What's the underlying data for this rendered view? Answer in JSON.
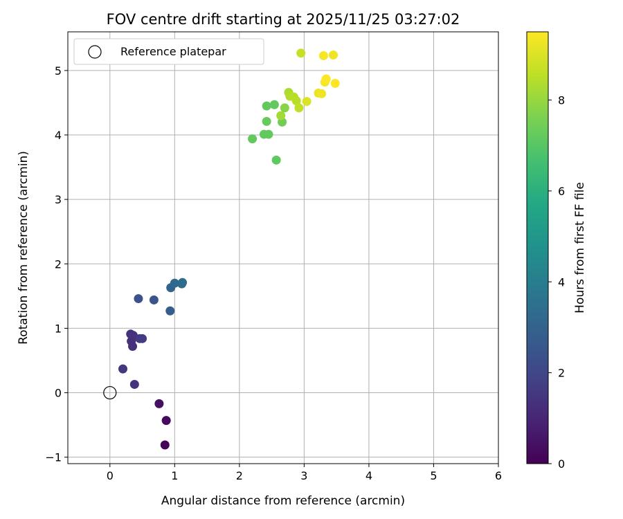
{
  "chart_data": {
    "type": "scatter",
    "title": "FOV centre drift starting at 2025/11/25 03:27:02",
    "xlabel": "Angular distance from reference (arcmin)",
    "ylabel": "Rotation from reference (arcmin)",
    "xlim": [
      -0.65,
      6.0
    ],
    "ylim": [
      -1.1,
      5.6
    ],
    "xticks": [
      0,
      1,
      2,
      3,
      4,
      5,
      6
    ],
    "yticks": [
      -1,
      0,
      1,
      2,
      3,
      4,
      5
    ],
    "grid": true,
    "legend": {
      "placement": "top-left",
      "label": "Reference platepar"
    },
    "reference_point": {
      "x": 0,
      "y": 0
    },
    "colorbar": {
      "label": "Hours from first FF file",
      "range": [
        0,
        9.5
      ],
      "ticks": [
        0,
        2,
        4,
        6,
        8
      ],
      "colormap": "viridis"
    },
    "points": [
      {
        "x": 0.85,
        "y": -0.81,
        "h": 0.1
      },
      {
        "x": 0.87,
        "y": -0.43,
        "h": 0.25
      },
      {
        "x": 0.76,
        "y": -0.17,
        "h": 0.4
      },
      {
        "x": 0.38,
        "y": 0.13,
        "h": 1.4
      },
      {
        "x": 0.2,
        "y": 0.37,
        "h": 1.5
      },
      {
        "x": 0.35,
        "y": 0.72,
        "h": 1.3
      },
      {
        "x": 0.33,
        "y": 0.8,
        "h": 1.3
      },
      {
        "x": 0.32,
        "y": 0.91,
        "h": 1.3
      },
      {
        "x": 0.36,
        "y": 0.89,
        "h": 1.4
      },
      {
        "x": 0.46,
        "y": 0.84,
        "h": 1.6
      },
      {
        "x": 0.5,
        "y": 0.84,
        "h": 1.7
      },
      {
        "x": 0.44,
        "y": 1.46,
        "h": 2.4
      },
      {
        "x": 0.68,
        "y": 1.44,
        "h": 2.5
      },
      {
        "x": 0.93,
        "y": 1.27,
        "h": 2.8
      },
      {
        "x": 0.94,
        "y": 1.63,
        "h": 3.0
      },
      {
        "x": 1.0,
        "y": 1.7,
        "h": 3.2
      },
      {
        "x": 1.11,
        "y": 1.69,
        "h": 3.3
      },
      {
        "x": 1.12,
        "y": 1.71,
        "h": 3.35
      },
      {
        "x": 2.2,
        "y": 3.94,
        "h": 7.2
      },
      {
        "x": 2.38,
        "y": 4.01,
        "h": 7.2
      },
      {
        "x": 2.45,
        "y": 4.01,
        "h": 7.2
      },
      {
        "x": 2.57,
        "y": 3.61,
        "h": 7.1
      },
      {
        "x": 2.42,
        "y": 4.21,
        "h": 7.25
      },
      {
        "x": 2.42,
        "y": 4.45,
        "h": 7.2
      },
      {
        "x": 2.54,
        "y": 4.47,
        "h": 7.2
      },
      {
        "x": 2.66,
        "y": 4.2,
        "h": 7.4
      },
      {
        "x": 2.64,
        "y": 4.3,
        "h": 8.2
      },
      {
        "x": 2.7,
        "y": 4.42,
        "h": 7.8
      },
      {
        "x": 2.76,
        "y": 4.66,
        "h": 8.3
      },
      {
        "x": 2.78,
        "y": 4.6,
        "h": 8.4
      },
      {
        "x": 2.84,
        "y": 4.59,
        "h": 8.5
      },
      {
        "x": 2.88,
        "y": 4.53,
        "h": 8.5
      },
      {
        "x": 2.92,
        "y": 4.42,
        "h": 8.6
      },
      {
        "x": 2.95,
        "y": 5.27,
        "h": 8.7
      },
      {
        "x": 3.04,
        "y": 4.52,
        "h": 9.0
      },
      {
        "x": 3.22,
        "y": 4.65,
        "h": 9.2
      },
      {
        "x": 3.27,
        "y": 4.64,
        "h": 9.3
      },
      {
        "x": 3.3,
        "y": 5.23,
        "h": 9.4
      },
      {
        "x": 3.32,
        "y": 4.82,
        "h": 9.4
      },
      {
        "x": 3.34,
        "y": 4.87,
        "h": 9.45
      },
      {
        "x": 3.45,
        "y": 5.24,
        "h": 9.3
      },
      {
        "x": 3.48,
        "y": 4.8,
        "h": 9.5
      }
    ]
  }
}
